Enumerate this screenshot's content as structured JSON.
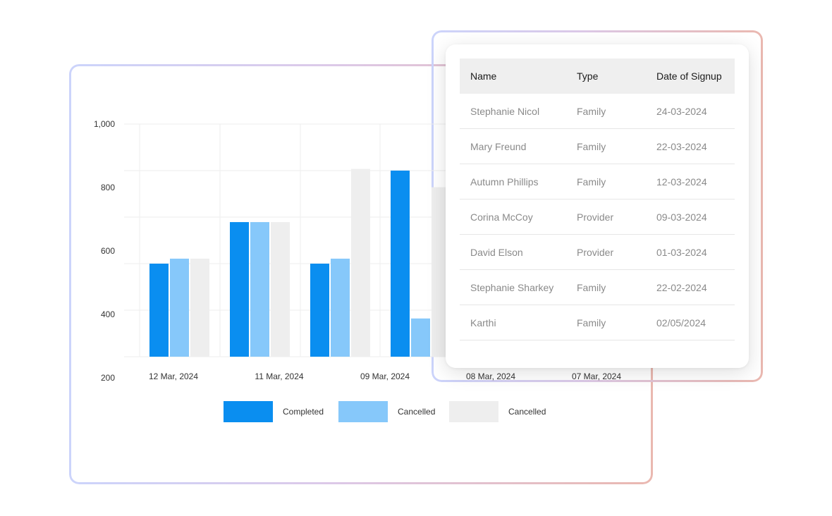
{
  "colors": {
    "completed": "#0a8ef0",
    "cancelled_light": "#86c8fa",
    "cancelled_gray": "#eeeeee",
    "grid": "#ededed"
  },
  "chart_data": {
    "type": "bar",
    "categories": [
      "12 Mar, 2024",
      "11 Mar, 2024",
      "09 Mar, 2024",
      "08 Mar, 2024",
      "07 Mar, 2024"
    ],
    "y_ticks": [
      "1,000",
      "800",
      "600",
      "400",
      "200"
    ],
    "ylim": [
      200,
      1000
    ],
    "grid": true,
    "legend_position": "bottom-center",
    "series": [
      {
        "name": "Completed",
        "color": "#0a8ef0",
        "values": [
          580,
          705,
          580,
          860,
          null
        ]
      },
      {
        "name": "Cancelled",
        "color": "#86c8fa",
        "values": [
          595,
          705,
          595,
          415,
          null
        ]
      },
      {
        "name": "Cancelled",
        "color": "#eeeeee",
        "values": [
          595,
          705,
          865,
          810,
          null
        ]
      }
    ]
  },
  "table": {
    "headers": [
      "Name",
      "Type",
      "Date of Signup"
    ],
    "rows": [
      [
        "Stephanie Nicol",
        "Family",
        "24-03-2024"
      ],
      [
        "Mary Freund",
        "Family",
        "22-03-2024"
      ],
      [
        "Autumn Phillips",
        "Family",
        "12-03-2024"
      ],
      [
        "Corina McCoy",
        "Provider",
        "09-03-2024"
      ],
      [
        "David Elson",
        "Provider",
        "01-03-2024"
      ],
      [
        "Stephanie Sharkey",
        "Family",
        "22-02-2024"
      ],
      [
        "Karthi",
        "Family",
        "02/05/2024"
      ]
    ]
  }
}
